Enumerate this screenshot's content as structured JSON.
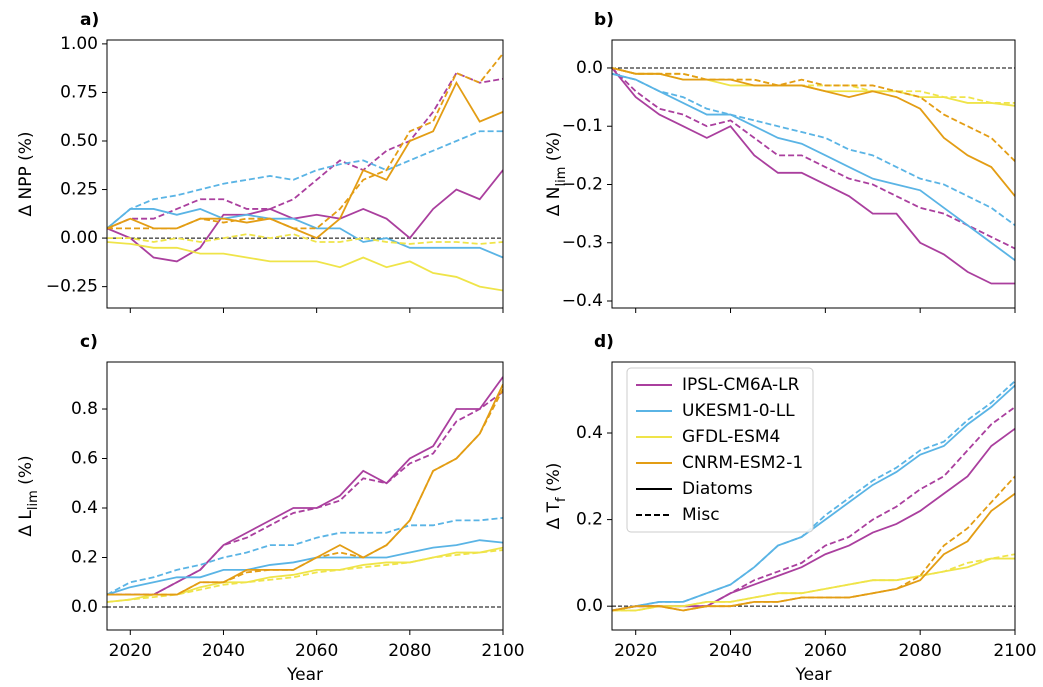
{
  "chart_data": [
    {
      "type": "line",
      "panel_label": "a)",
      "ylabel": "Δ NPP (%)",
      "x": [
        2015,
        2020,
        2025,
        2030,
        2035,
        2040,
        2045,
        2050,
        2055,
        2060,
        2065,
        2070,
        2075,
        2080,
        2085,
        2090,
        2095,
        2100
      ],
      "xlim": [
        2015,
        2100
      ],
      "xticks": [
        2020,
        2040,
        2060,
        2080,
        2100
      ],
      "show_xtick_labels": false,
      "ylim": [
        -0.36,
        1.02
      ],
      "yticks": [
        {
          "value": -0.25,
          "label": "−0.25"
        },
        {
          "value": 0,
          "label": "0.00"
        },
        0.25,
        {
          "value": 0.5,
          "label": "0.50"
        },
        0.75,
        {
          "value": 1,
          "label": "1.00"
        }
      ],
      "hline": 0,
      "series": [
        {
          "color": "#aa3f9e",
          "linestyle": "solid",
          "values": [
            0.05,
            0.0,
            -0.1,
            -0.12,
            -0.05,
            0.12,
            0.12,
            0.15,
            0.1,
            0.12,
            0.1,
            0.15,
            0.1,
            0.0,
            0.15,
            0.25,
            0.2,
            0.35
          ]
        },
        {
          "color": "#aa3f9e",
          "linestyle": "dashed",
          "values": [
            0.05,
            0.1,
            0.1,
            0.15,
            0.2,
            0.2,
            0.15,
            0.15,
            0.2,
            0.3,
            0.4,
            0.35,
            0.45,
            0.5,
            0.65,
            0.85,
            0.8,
            0.82
          ]
        },
        {
          "color": "#5ab4e5",
          "linestyle": "solid",
          "values": [
            0.05,
            0.15,
            0.15,
            0.12,
            0.15,
            0.1,
            0.12,
            0.1,
            0.1,
            0.05,
            0.05,
            -0.02,
            0.0,
            -0.05,
            -0.05,
            -0.05,
            -0.05,
            -0.1
          ]
        },
        {
          "color": "#5ab4e5",
          "linestyle": "dashed",
          "values": [
            0.05,
            0.15,
            0.2,
            0.22,
            0.25,
            0.28,
            0.3,
            0.32,
            0.3,
            0.35,
            0.38,
            0.4,
            0.35,
            0.4,
            0.45,
            0.5,
            0.55,
            0.55
          ]
        },
        {
          "color": "#efe449",
          "linestyle": "solid",
          "values": [
            -0.02,
            -0.03,
            -0.05,
            -0.05,
            -0.08,
            -0.08,
            -0.1,
            -0.12,
            -0.12,
            -0.12,
            -0.15,
            -0.1,
            -0.15,
            -0.12,
            -0.18,
            -0.2,
            -0.25,
            -0.27
          ]
        },
        {
          "color": "#efe449",
          "linestyle": "dashed",
          "values": [
            0.0,
            0.0,
            -0.02,
            0.0,
            -0.02,
            0.0,
            0.02,
            0.0,
            0.02,
            -0.02,
            -0.02,
            0.0,
            -0.02,
            -0.03,
            -0.02,
            -0.02,
            -0.03,
            -0.02
          ]
        },
        {
          "color": "#e39d14",
          "linestyle": "solid",
          "values": [
            0.05,
            0.1,
            0.05,
            0.05,
            0.1,
            0.1,
            0.08,
            0.1,
            0.05,
            0.0,
            0.1,
            0.35,
            0.3,
            0.5,
            0.55,
            0.8,
            0.6,
            0.65
          ]
        },
        {
          "color": "#e39d14",
          "linestyle": "dashed",
          "values": [
            0.05,
            0.05,
            0.05,
            0.05,
            0.1,
            0.08,
            0.1,
            0.1,
            0.05,
            0.05,
            0.15,
            0.3,
            0.35,
            0.55,
            0.6,
            0.85,
            0.8,
            0.95
          ]
        }
      ]
    },
    {
      "type": "line",
      "panel_label": "b)",
      "ylabel": {
        "text": "Δ N",
        "sub": "lim",
        "suffix": " (%)"
      },
      "x": [
        2015,
        2020,
        2025,
        2030,
        2035,
        2040,
        2045,
        2050,
        2055,
        2060,
        2065,
        2070,
        2075,
        2080,
        2085,
        2090,
        2095,
        2100
      ],
      "xlim": [
        2015,
        2100
      ],
      "xticks": [
        2020,
        2040,
        2060,
        2080,
        2100
      ],
      "show_xtick_labels": false,
      "ylim": [
        -0.412,
        0.048
      ],
      "yticks": [
        {
          "value": -0.4,
          "label": "−0.4"
        },
        {
          "value": -0.3,
          "label": "−0.3"
        },
        {
          "value": -0.2,
          "label": "−0.2"
        },
        {
          "value": -0.1,
          "label": "−0.1"
        },
        {
          "value": 0,
          "label": "0.0"
        }
      ],
      "hline": 0,
      "series": [
        {
          "color": "#aa3f9e",
          "linestyle": "solid",
          "values": [
            0.0,
            -0.05,
            -0.08,
            -0.1,
            -0.12,
            -0.1,
            -0.15,
            -0.18,
            -0.18,
            -0.2,
            -0.22,
            -0.25,
            -0.25,
            -0.3,
            -0.32,
            -0.35,
            -0.37,
            -0.37
          ]
        },
        {
          "color": "#aa3f9e",
          "linestyle": "dashed",
          "values": [
            0.0,
            -0.04,
            -0.07,
            -0.08,
            -0.1,
            -0.09,
            -0.12,
            -0.15,
            -0.15,
            -0.17,
            -0.19,
            -0.2,
            -0.22,
            -0.24,
            -0.25,
            -0.27,
            -0.29,
            -0.31
          ]
        },
        {
          "color": "#5ab4e5",
          "linestyle": "solid",
          "values": [
            -0.01,
            -0.02,
            -0.04,
            -0.06,
            -0.08,
            -0.08,
            -0.1,
            -0.12,
            -0.13,
            -0.15,
            -0.17,
            -0.19,
            -0.2,
            -0.21,
            -0.24,
            -0.27,
            -0.3,
            -0.33
          ]
        },
        {
          "color": "#5ab4e5",
          "linestyle": "dashed",
          "values": [
            -0.01,
            -0.02,
            -0.04,
            -0.05,
            -0.07,
            -0.08,
            -0.09,
            -0.1,
            -0.11,
            -0.12,
            -0.14,
            -0.15,
            -0.17,
            -0.19,
            -0.2,
            -0.22,
            -0.24,
            -0.27
          ]
        },
        {
          "color": "#efe449",
          "linestyle": "solid",
          "values": [
            0.0,
            -0.01,
            -0.01,
            -0.02,
            -0.02,
            -0.03,
            -0.03,
            -0.03,
            -0.03,
            -0.04,
            -0.04,
            -0.04,
            -0.04,
            -0.05,
            -0.05,
            -0.06,
            -0.06,
            -0.065
          ]
        },
        {
          "color": "#efe449",
          "linestyle": "dashed",
          "values": [
            0.0,
            -0.01,
            -0.01,
            -0.01,
            -0.02,
            -0.02,
            -0.02,
            -0.03,
            -0.03,
            -0.03,
            -0.03,
            -0.04,
            -0.04,
            -0.04,
            -0.05,
            -0.05,
            -0.06,
            -0.06
          ]
        },
        {
          "color": "#e39d14",
          "linestyle": "solid",
          "values": [
            0.0,
            -0.01,
            -0.01,
            -0.02,
            -0.02,
            -0.02,
            -0.03,
            -0.03,
            -0.03,
            -0.04,
            -0.05,
            -0.04,
            -0.05,
            -0.07,
            -0.12,
            -0.15,
            -0.17,
            -0.22
          ]
        },
        {
          "color": "#e39d14",
          "linestyle": "dashed",
          "values": [
            0.0,
            -0.01,
            -0.01,
            -0.01,
            -0.02,
            -0.02,
            -0.02,
            -0.03,
            -0.02,
            -0.03,
            -0.03,
            -0.03,
            -0.04,
            -0.05,
            -0.08,
            -0.1,
            -0.12,
            -0.16
          ]
        }
      ]
    },
    {
      "type": "line",
      "panel_label": "c)",
      "ylabel": {
        "text": "Δ L",
        "sub": "lim",
        "suffix": " (%)"
      },
      "xlabel": "Year",
      "x": [
        2015,
        2020,
        2025,
        2030,
        2035,
        2040,
        2045,
        2050,
        2055,
        2060,
        2065,
        2070,
        2075,
        2080,
        2085,
        2090,
        2095,
        2100
      ],
      "xlim": [
        2015,
        2100
      ],
      "xticks": [
        2020,
        2040,
        2060,
        2080,
        2100
      ],
      "show_xtick_labels": true,
      "ylim": [
        -0.093,
        0.99
      ],
      "yticks": [
        {
          "value": 0,
          "label": "0.0"
        },
        0.2,
        0.4,
        0.6,
        0.8
      ],
      "hline": 0,
      "series": [
        {
          "color": "#aa3f9e",
          "linestyle": "solid",
          "values": [
            0.05,
            0.05,
            0.05,
            0.1,
            0.15,
            0.25,
            0.3,
            0.35,
            0.4,
            0.4,
            0.45,
            0.55,
            0.5,
            0.6,
            0.65,
            0.8,
            0.8,
            0.93
          ]
        },
        {
          "color": "#aa3f9e",
          "linestyle": "dashed",
          "values": [
            0.05,
            0.05,
            0.05,
            0.1,
            0.15,
            0.25,
            0.28,
            0.33,
            0.38,
            0.4,
            0.43,
            0.52,
            0.5,
            0.58,
            0.62,
            0.75,
            0.8,
            0.87
          ]
        },
        {
          "color": "#5ab4e5",
          "linestyle": "solid",
          "values": [
            0.05,
            0.08,
            0.1,
            0.12,
            0.12,
            0.15,
            0.15,
            0.17,
            0.18,
            0.2,
            0.2,
            0.2,
            0.2,
            0.22,
            0.24,
            0.25,
            0.27,
            0.26
          ]
        },
        {
          "color": "#5ab4e5",
          "linestyle": "dashed",
          "values": [
            0.05,
            0.1,
            0.12,
            0.15,
            0.17,
            0.2,
            0.22,
            0.25,
            0.25,
            0.28,
            0.3,
            0.3,
            0.3,
            0.33,
            0.33,
            0.35,
            0.35,
            0.36
          ]
        },
        {
          "color": "#efe449",
          "linestyle": "solid",
          "values": [
            0.02,
            0.03,
            0.05,
            0.05,
            0.08,
            0.1,
            0.1,
            0.12,
            0.13,
            0.15,
            0.15,
            0.17,
            0.18,
            0.18,
            0.2,
            0.22,
            0.22,
            0.24
          ]
        },
        {
          "color": "#efe449",
          "linestyle": "dashed",
          "values": [
            0.02,
            0.03,
            0.04,
            0.05,
            0.07,
            0.09,
            0.1,
            0.11,
            0.12,
            0.14,
            0.15,
            0.16,
            0.17,
            0.18,
            0.2,
            0.21,
            0.22,
            0.23
          ]
        },
        {
          "color": "#e39d14",
          "linestyle": "solid",
          "values": [
            0.05,
            0.05,
            0.05,
            0.05,
            0.1,
            0.1,
            0.15,
            0.15,
            0.15,
            0.2,
            0.25,
            0.2,
            0.25,
            0.35,
            0.55,
            0.6,
            0.7,
            0.9
          ]
        },
        {
          "color": "#e39d14",
          "linestyle": "dashed",
          "values": [
            0.05,
            0.05,
            0.05,
            0.05,
            0.1,
            0.1,
            0.14,
            0.15,
            0.15,
            0.2,
            0.22,
            0.2,
            0.25,
            0.35,
            0.55,
            0.6,
            0.7,
            0.88
          ]
        }
      ]
    },
    {
      "type": "line",
      "panel_label": "d)",
      "ylabel": {
        "text": "Δ T",
        "sub": "f",
        "suffix": " (%)"
      },
      "xlabel": "Year",
      "x": [
        2015,
        2020,
        2025,
        2030,
        2035,
        2040,
        2045,
        2050,
        2055,
        2060,
        2065,
        2070,
        2075,
        2080,
        2085,
        2090,
        2095,
        2100
      ],
      "xlim": [
        2015,
        2100
      ],
      "xticks": [
        2020,
        2040,
        2060,
        2080,
        2100
      ],
      "show_xtick_labels": true,
      "ylim": [
        -0.055,
        0.564
      ],
      "yticks": [
        {
          "value": 0,
          "label": "0.0"
        },
        0.2,
        0.4
      ],
      "hline": 0,
      "legend": {
        "loc": "upper left",
        "entries": [
          {
            "name": "IPSL-CM6A-LR",
            "color": "#aa3f9e",
            "linestyle": "solid"
          },
          {
            "name": "UKESM1-0-LL",
            "color": "#5ab4e5",
            "linestyle": "solid"
          },
          {
            "name": "GFDL-ESM4",
            "color": "#efe449",
            "linestyle": "solid"
          },
          {
            "name": "CNRM-ESM2-1",
            "color": "#e39d14",
            "linestyle": "solid"
          },
          {
            "name": "Diatoms",
            "color": "#000000",
            "linestyle": "solid"
          },
          {
            "name": "Misc",
            "color": "#000000",
            "linestyle": "dashed"
          }
        ]
      },
      "series": [
        {
          "color": "#aa3f9e",
          "linestyle": "solid",
          "values": [
            -0.01,
            0.0,
            0.0,
            0.0,
            0.0,
            0.03,
            0.05,
            0.07,
            0.09,
            0.12,
            0.14,
            0.17,
            0.19,
            0.22,
            0.26,
            0.3,
            0.37,
            0.41
          ]
        },
        {
          "color": "#aa3f9e",
          "linestyle": "dashed",
          "values": [
            -0.01,
            0.0,
            0.0,
            0.0,
            0.0,
            0.03,
            0.06,
            0.08,
            0.1,
            0.14,
            0.16,
            0.2,
            0.23,
            0.27,
            0.3,
            0.36,
            0.42,
            0.46
          ]
        },
        {
          "color": "#5ab4e5",
          "linestyle": "solid",
          "values": [
            -0.01,
            0.0,
            0.01,
            0.01,
            0.03,
            0.05,
            0.09,
            0.14,
            0.16,
            0.2,
            0.24,
            0.28,
            0.31,
            0.35,
            0.37,
            0.42,
            0.46,
            0.51
          ]
        },
        {
          "color": "#5ab4e5",
          "linestyle": "dashed",
          "values": [
            -0.01,
            0.0,
            0.01,
            0.01,
            0.03,
            0.05,
            0.09,
            0.14,
            0.16,
            0.21,
            0.25,
            0.29,
            0.32,
            0.36,
            0.38,
            0.43,
            0.47,
            0.52
          ]
        },
        {
          "color": "#efe449",
          "linestyle": "solid",
          "values": [
            -0.01,
            -0.01,
            0.0,
            0.0,
            0.01,
            0.01,
            0.02,
            0.03,
            0.03,
            0.04,
            0.05,
            0.06,
            0.06,
            0.07,
            0.08,
            0.09,
            0.11,
            0.11
          ]
        },
        {
          "color": "#efe449",
          "linestyle": "dashed",
          "values": [
            -0.01,
            -0.01,
            0.0,
            0.0,
            0.01,
            0.01,
            0.02,
            0.03,
            0.03,
            0.04,
            0.05,
            0.06,
            0.06,
            0.07,
            0.08,
            0.1,
            0.11,
            0.12
          ]
        },
        {
          "color": "#e39d14",
          "linestyle": "solid",
          "values": [
            -0.01,
            0.0,
            0.0,
            -0.01,
            0.0,
            0.0,
            0.01,
            0.01,
            0.02,
            0.02,
            0.02,
            0.03,
            0.04,
            0.06,
            0.12,
            0.15,
            0.22,
            0.26
          ]
        },
        {
          "color": "#e39d14",
          "linestyle": "dashed",
          "values": [
            -0.01,
            0.0,
            0.0,
            -0.01,
            0.0,
            0.0,
            0.01,
            0.01,
            0.02,
            0.02,
            0.02,
            0.03,
            0.04,
            0.07,
            0.14,
            0.18,
            0.24,
            0.3
          ]
        }
      ]
    }
  ]
}
